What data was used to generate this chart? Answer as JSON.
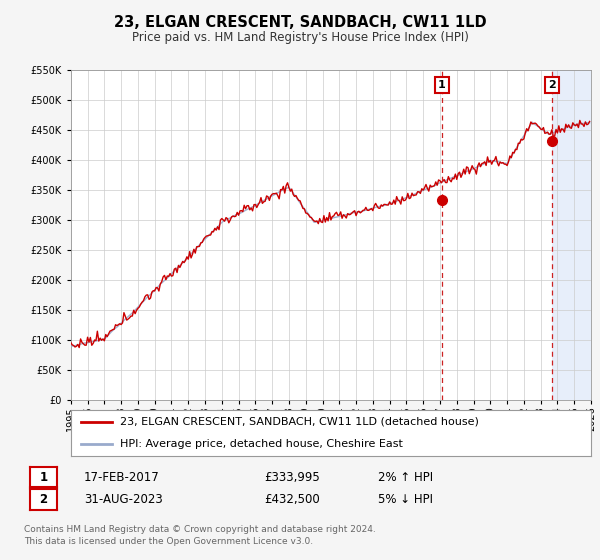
{
  "title": "23, ELGAN CRESCENT, SANDBACH, CW11 1LD",
  "subtitle": "Price paid vs. HM Land Registry's House Price Index (HPI)",
  "ylim": [
    0,
    550000
  ],
  "yticks": [
    0,
    50000,
    100000,
    150000,
    200000,
    250000,
    300000,
    350000,
    400000,
    450000,
    500000,
    550000
  ],
  "xlim_start": 1995.0,
  "xlim_end": 2026.0,
  "fig_bg_color": "#f5f5f5",
  "plot_bg_color": "#ffffff",
  "shade_color": "#dde8f8",
  "grid_color": "#cccccc",
  "line1_color": "#cc0000",
  "line2_color": "#99aacc",
  "vline_color": "#cc2222",
  "marker1_x": 2017.12,
  "marker1_y": 333995,
  "marker2_x": 2023.67,
  "marker2_y": 432500,
  "legend_line1": "23, ELGAN CRESCENT, SANDBACH, CW11 1LD (detached house)",
  "legend_line2": "HPI: Average price, detached house, Cheshire East",
  "table_row1": [
    "1",
    "17-FEB-2017",
    "£333,995",
    "2% ↑ HPI"
  ],
  "table_row2": [
    "2",
    "31-AUG-2023",
    "£432,500",
    "5% ↓ HPI"
  ],
  "footnote": "Contains HM Land Registry data © Crown copyright and database right 2024.\nThis data is licensed under the Open Government Licence v3.0.",
  "title_fontsize": 10.5,
  "subtitle_fontsize": 8.5,
  "tick_fontsize": 7,
  "legend_fontsize": 8,
  "table_fontsize": 8.5,
  "footnote_fontsize": 6.5
}
